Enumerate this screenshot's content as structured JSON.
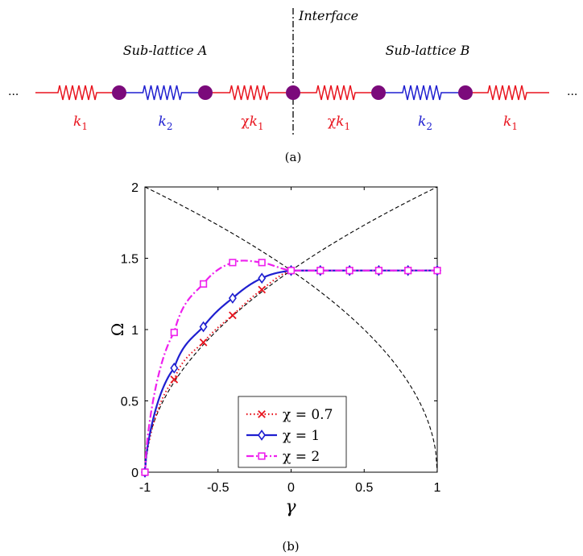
{
  "panel_a": {
    "interface_label": "Interface",
    "sublattice_a_label": "Sub-lattice A",
    "sublattice_b_label": "Sub-lattice B",
    "ellipsis_left": "...",
    "ellipsis_right": "...",
    "spring_labels": [
      {
        "prefix": "",
        "sub": "1",
        "color": "#e8141e"
      },
      {
        "prefix": "",
        "sub": "2",
        "color": "#1f1fd0"
      },
      {
        "prefix": "χ",
        "sub": "1",
        "color": "#e8141e"
      },
      {
        "prefix": "χ",
        "sub": "1",
        "color": "#e8141e"
      },
      {
        "prefix": "",
        "sub": "2",
        "color": "#1f1fd0"
      },
      {
        "prefix": "",
        "sub": "1",
        "color": "#e8141e"
      }
    ],
    "spring_symbol": "k",
    "caption": "(a)",
    "colors": {
      "red_spring": "#e8141e",
      "blue_spring": "#1f1fd0",
      "mass": "#7b0a7b"
    }
  },
  "panel_b": {
    "caption": "(b)",
    "chart_data": {
      "type": "line",
      "xlabel": "γ",
      "ylabel": "Ω",
      "xlim": [
        -1,
        1
      ],
      "ylim": [
        0,
        2
      ],
      "xticks": [
        -1,
        -0.5,
        0,
        0.5,
        1
      ],
      "xtick_labels": [
        "-1",
        "-0.5",
        "0",
        "0.5",
        "1"
      ],
      "yticks": [
        0,
        0.5,
        1,
        1.5,
        2
      ],
      "ytick_labels": [
        "0",
        "0.5",
        "1",
        "1.5",
        "2"
      ],
      "grid": false,
      "legend_position": "bottom-center",
      "series": [
        {
          "name": "χ = 0.7",
          "color": "#e8141e",
          "line_style": "dotted",
          "marker": "x",
          "x": [
            -1,
            -0.8,
            -0.6,
            -0.4,
            -0.2,
            0,
            0.2,
            0.4,
            0.6,
            0.8,
            1
          ],
          "y": [
            0,
            0.65,
            0.91,
            1.1,
            1.28,
            1.414,
            1.414,
            1.414,
            1.414,
            1.414,
            1.414
          ]
        },
        {
          "name": "χ = 1",
          "color": "#1f1fd0",
          "line_style": "solid",
          "marker": "diamond",
          "x": [
            -1,
            -0.8,
            -0.6,
            -0.4,
            -0.2,
            0,
            0.2,
            0.4,
            0.6,
            0.8,
            1
          ],
          "y": [
            0,
            0.73,
            1.02,
            1.22,
            1.36,
            1.414,
            1.414,
            1.414,
            1.414,
            1.414,
            1.414
          ]
        },
        {
          "name": "χ = 2",
          "color": "#ee20ee",
          "line_style": "dash-dot",
          "marker": "square",
          "x": [
            -1,
            -0.8,
            -0.6,
            -0.4,
            -0.2,
            0,
            0.2,
            0.4,
            0.6,
            0.8,
            1
          ],
          "y": [
            0,
            0.98,
            1.32,
            1.47,
            1.47,
            1.414,
            1.414,
            1.414,
            1.414,
            1.414,
            1.414
          ]
        }
      ],
      "reference_curves": [
        {
          "color": "#000000",
          "line_style": "dashed",
          "x": [
            -1,
            -0.75,
            -0.5,
            -0.25,
            0,
            0.25,
            0.5,
            0.75,
            1
          ],
          "y": [
            2,
            1.871,
            1.732,
            1.581,
            1.414,
            1.225,
            1.0,
            0.707,
            0
          ]
        },
        {
          "color": "#000000",
          "line_style": "dashed",
          "x": [
            -1,
            -0.75,
            -0.5,
            -0.25,
            0,
            0.25,
            0.5,
            0.75,
            1
          ],
          "y": [
            0,
            0.707,
            1.0,
            1.225,
            1.414,
            1.581,
            1.732,
            1.871,
            2
          ]
        }
      ]
    }
  }
}
